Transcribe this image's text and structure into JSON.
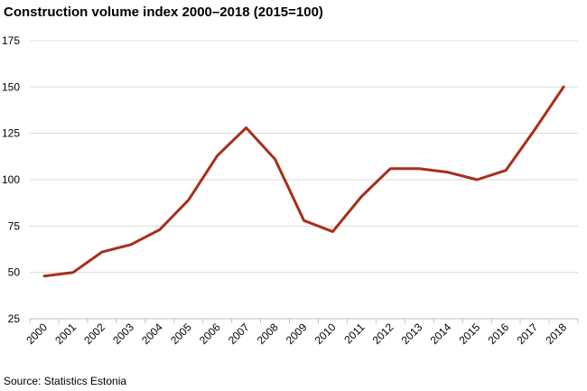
{
  "chart_data": {
    "type": "line",
    "title": "Construction volume index 2000–2018 (2015=100)",
    "source": "Source: Statistics Estonia",
    "xlabel": "",
    "ylabel": "",
    "categories": [
      "2000",
      "2001",
      "2002",
      "2003",
      "2004",
      "2005",
      "2006",
      "2007",
      "2008",
      "2009",
      "2010",
      "2011",
      "2012",
      "2013",
      "2014",
      "2015",
      "2016",
      "2017",
      "2018"
    ],
    "series": [
      {
        "values": [
          48,
          50,
          61,
          65,
          73,
          89,
          113,
          128,
          111,
          78,
          72,
          91,
          106,
          106,
          104,
          100,
          105,
          127,
          150
        ]
      }
    ],
    "ylim": [
      25,
      175
    ],
    "yticks": [
      25,
      50,
      75,
      100,
      125,
      150,
      175
    ],
    "grid": true,
    "line_color": "#a82e1b",
    "grid_color": "#d9d9d9"
  }
}
